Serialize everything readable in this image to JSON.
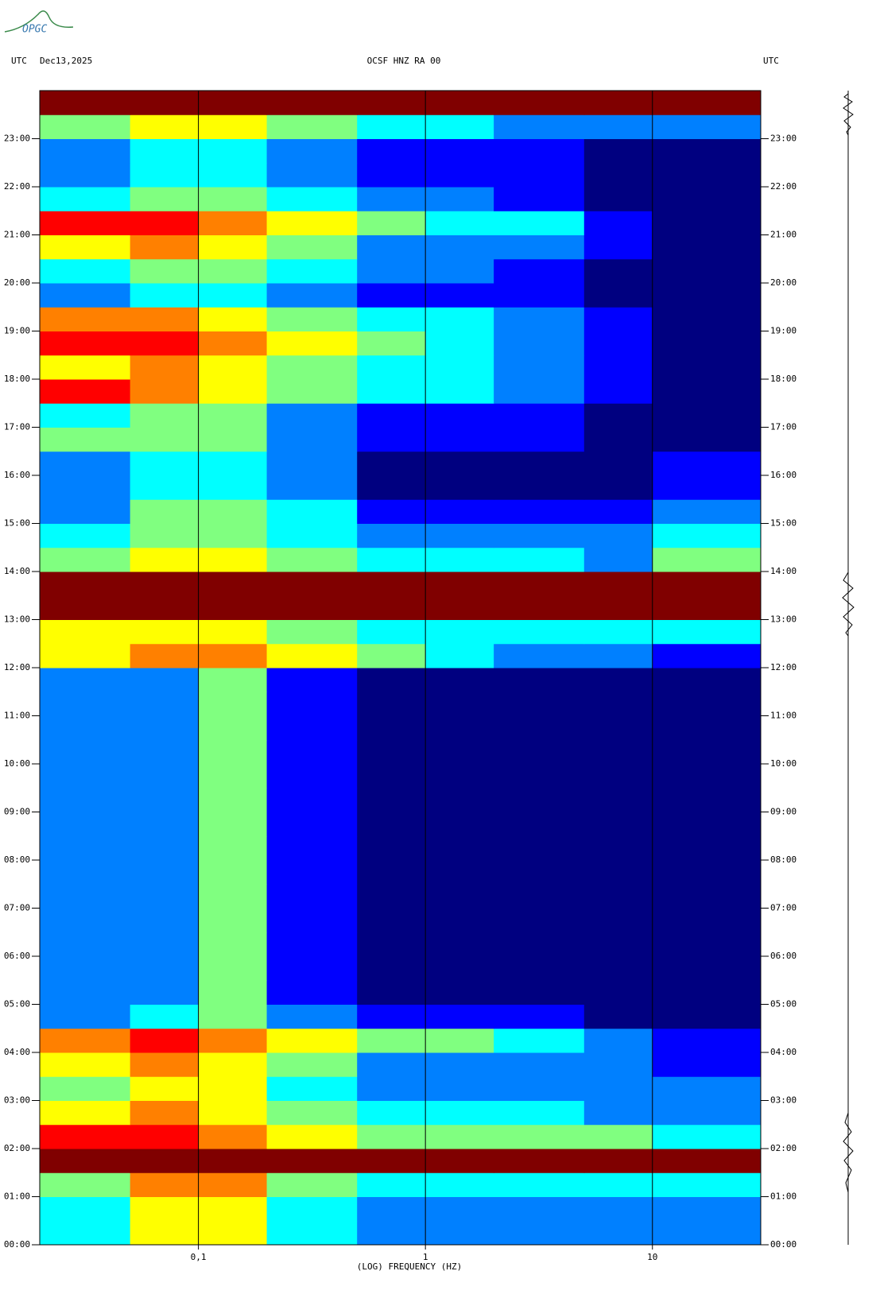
{
  "logo": "OPGC",
  "chart_data": {
    "type": "heatmap",
    "title": "OCSF HNZ RA 00",
    "timezone": "UTC",
    "date": "Dec13,2025",
    "xlabel": "(LOG) FREQUENCY (HZ)",
    "xscale": "log",
    "xlim": [
      0.02,
      30
    ],
    "ylim": [
      0,
      24
    ],
    "xticks": [
      {
        "value": 0.1,
        "label": "0,1"
      },
      1,
      10
    ],
    "yticks": [
      {
        "value": 0,
        "label": "00:00"
      },
      {
        "value": 1,
        "label": "01:00"
      },
      {
        "value": 2,
        "label": "02:00"
      },
      {
        "value": 3,
        "label": "03:00"
      },
      {
        "value": 4,
        "label": "04:00"
      },
      {
        "value": 5,
        "label": "05:00"
      },
      {
        "value": 6,
        "label": "06:00"
      },
      {
        "value": 7,
        "label": "07:00"
      },
      {
        "value": 8,
        "label": "08:00"
      },
      {
        "value": 9,
        "label": "09:00"
      },
      {
        "value": 10,
        "label": "10:00"
      },
      {
        "value": 11,
        "label": "11:00"
      },
      {
        "value": 12,
        "label": "12:00"
      },
      {
        "value": 13,
        "label": "13:00"
      },
      {
        "value": 14,
        "label": "14:00"
      },
      {
        "value": 15,
        "label": "15:00"
      },
      {
        "value": 16,
        "label": "16:00"
      },
      {
        "value": 17,
        "label": "17:00"
      },
      {
        "value": 18,
        "label": "18:00"
      },
      {
        "value": 19,
        "label": "19:00"
      },
      {
        "value": 20,
        "label": "20:00"
      },
      {
        "value": 21,
        "label": "21:00"
      },
      {
        "value": 22,
        "label": "22:00"
      },
      {
        "value": 23,
        "label": "23:00"
      }
    ],
    "xbins": [
      0.02,
      0.05,
      0.1,
      0.2,
      0.5,
      1,
      2,
      5,
      10,
      30
    ],
    "ybins": [
      0,
      0.5,
      1,
      1.5,
      2,
      2.5,
      3,
      3.5,
      4,
      4.5,
      5,
      5.5,
      6,
      6.5,
      7,
      7.5,
      8,
      8.5,
      9,
      9.5,
      10,
      10.5,
      11,
      11.5,
      12,
      12.5,
      13,
      13.5,
      14,
      14.5,
      15,
      15.5,
      16,
      16.5,
      17,
      17.5,
      18,
      18.5,
      19,
      19.5,
      20,
      20.5,
      21,
      21.5,
      22,
      22.5,
      23,
      23.5,
      24
    ],
    "values": [
      [
        4,
        6,
        6,
        4,
        3,
        3,
        3,
        3,
        3
      ],
      [
        4,
        6,
        6,
        4,
        3,
        3,
        3,
        3,
        3
      ],
      [
        5,
        7,
        7,
        5,
        4,
        4,
        4,
        4,
        4
      ],
      [
        9,
        9,
        9,
        9,
        9,
        9,
        9,
        9,
        9
      ],
      [
        8,
        8,
        7,
        6,
        5,
        5,
        5,
        5,
        4
      ],
      [
        6,
        7,
        6,
        5,
        4,
        4,
        4,
        3,
        3
      ],
      [
        5,
        6,
        6,
        4,
        3,
        3,
        3,
        3,
        3
      ],
      [
        6,
        7,
        6,
        5,
        3,
        3,
        3,
        3,
        2
      ],
      [
        7,
        8,
        7,
        6,
        5,
        5,
        4,
        3,
        2
      ],
      [
        3,
        4,
        5,
        3,
        2,
        2,
        2,
        1,
        1
      ],
      [
        3,
        3,
        5,
        2,
        1,
        1,
        1,
        1,
        1
      ],
      [
        3,
        3,
        5,
        2,
        1,
        1,
        1,
        1,
        1
      ],
      [
        3,
        3,
        5,
        2,
        1,
        1,
        1,
        1,
        1
      ],
      [
        3,
        3,
        5,
        2,
        1,
        1,
        1,
        1,
        1
      ],
      [
        3,
        3,
        5,
        2,
        1,
        1,
        1,
        1,
        1
      ],
      [
        3,
        3,
        5,
        2,
        1,
        1,
        1,
        1,
        1
      ],
      [
        3,
        3,
        5,
        2,
        1,
        1,
        1,
        1,
        1
      ],
      [
        3,
        3,
        5,
        2,
        1,
        1,
        1,
        1,
        1
      ],
      [
        3,
        3,
        5,
        2,
        1,
        1,
        1,
        1,
        1
      ],
      [
        3,
        3,
        5,
        2,
        1,
        1,
        1,
        1,
        1
      ],
      [
        3,
        3,
        5,
        2,
        1,
        1,
        1,
        1,
        1
      ],
      [
        3,
        3,
        5,
        2,
        1,
        1,
        1,
        1,
        1
      ],
      [
        3,
        3,
        5,
        2,
        1,
        1,
        1,
        1,
        1
      ],
      [
        3,
        3,
        5,
        2,
        1,
        1,
        1,
        1,
        1
      ],
      [
        6,
        7,
        7,
        6,
        5,
        4,
        3,
        3,
        2
      ],
      [
        6,
        6,
        6,
        5,
        4,
        4,
        4,
        4,
        4
      ],
      [
        9,
        9,
        9,
        9,
        9,
        9,
        9,
        9,
        9
      ],
      [
        9,
        9,
        9,
        9,
        9,
        9,
        9,
        9,
        9
      ],
      [
        5,
        6,
        6,
        5,
        4,
        4,
        4,
        3,
        5
      ],
      [
        4,
        5,
        5,
        4,
        3,
        3,
        3,
        3,
        4
      ],
      [
        3,
        5,
        5,
        4,
        2,
        2,
        2,
        2,
        3
      ],
      [
        3,
        4,
        4,
        3,
        1,
        1,
        1,
        1,
        2
      ],
      [
        3,
        4,
        4,
        3,
        1,
        1,
        1,
        1,
        2
      ],
      [
        5,
        5,
        5,
        3,
        2,
        2,
        2,
        1,
        1
      ],
      [
        4,
        5,
        5,
        3,
        2,
        2,
        2,
        1,
        1
      ],
      [
        8,
        7,
        6,
        5,
        4,
        4,
        3,
        2,
        1
      ],
      [
        6,
        7,
        6,
        5,
        4,
        4,
        3,
        2,
        1
      ],
      [
        8,
        8,
        7,
        6,
        5,
        4,
        3,
        2,
        1
      ],
      [
        7,
        7,
        6,
        5,
        4,
        4,
        3,
        2,
        1
      ],
      [
        3,
        4,
        4,
        3,
        2,
        2,
        2,
        1,
        1
      ],
      [
        4,
        5,
        5,
        4,
        3,
        3,
        2,
        1,
        1
      ],
      [
        6,
        7,
        6,
        5,
        3,
        3,
        3,
        2,
        1
      ],
      [
        8,
        8,
        7,
        6,
        5,
        4,
        4,
        2,
        1
      ],
      [
        4,
        5,
        5,
        4,
        3,
        3,
        2,
        1,
        1
      ],
      [
        3,
        4,
        4,
        3,
        2,
        2,
        2,
        1,
        1
      ],
      [
        3,
        4,
        4,
        3,
        2,
        2,
        2,
        1,
        1
      ],
      [
        5,
        6,
        6,
        5,
        4,
        4,
        3,
        3,
        3
      ],
      [
        9,
        9,
        9,
        9,
        9,
        9,
        9,
        9,
        9
      ]
    ]
  }
}
